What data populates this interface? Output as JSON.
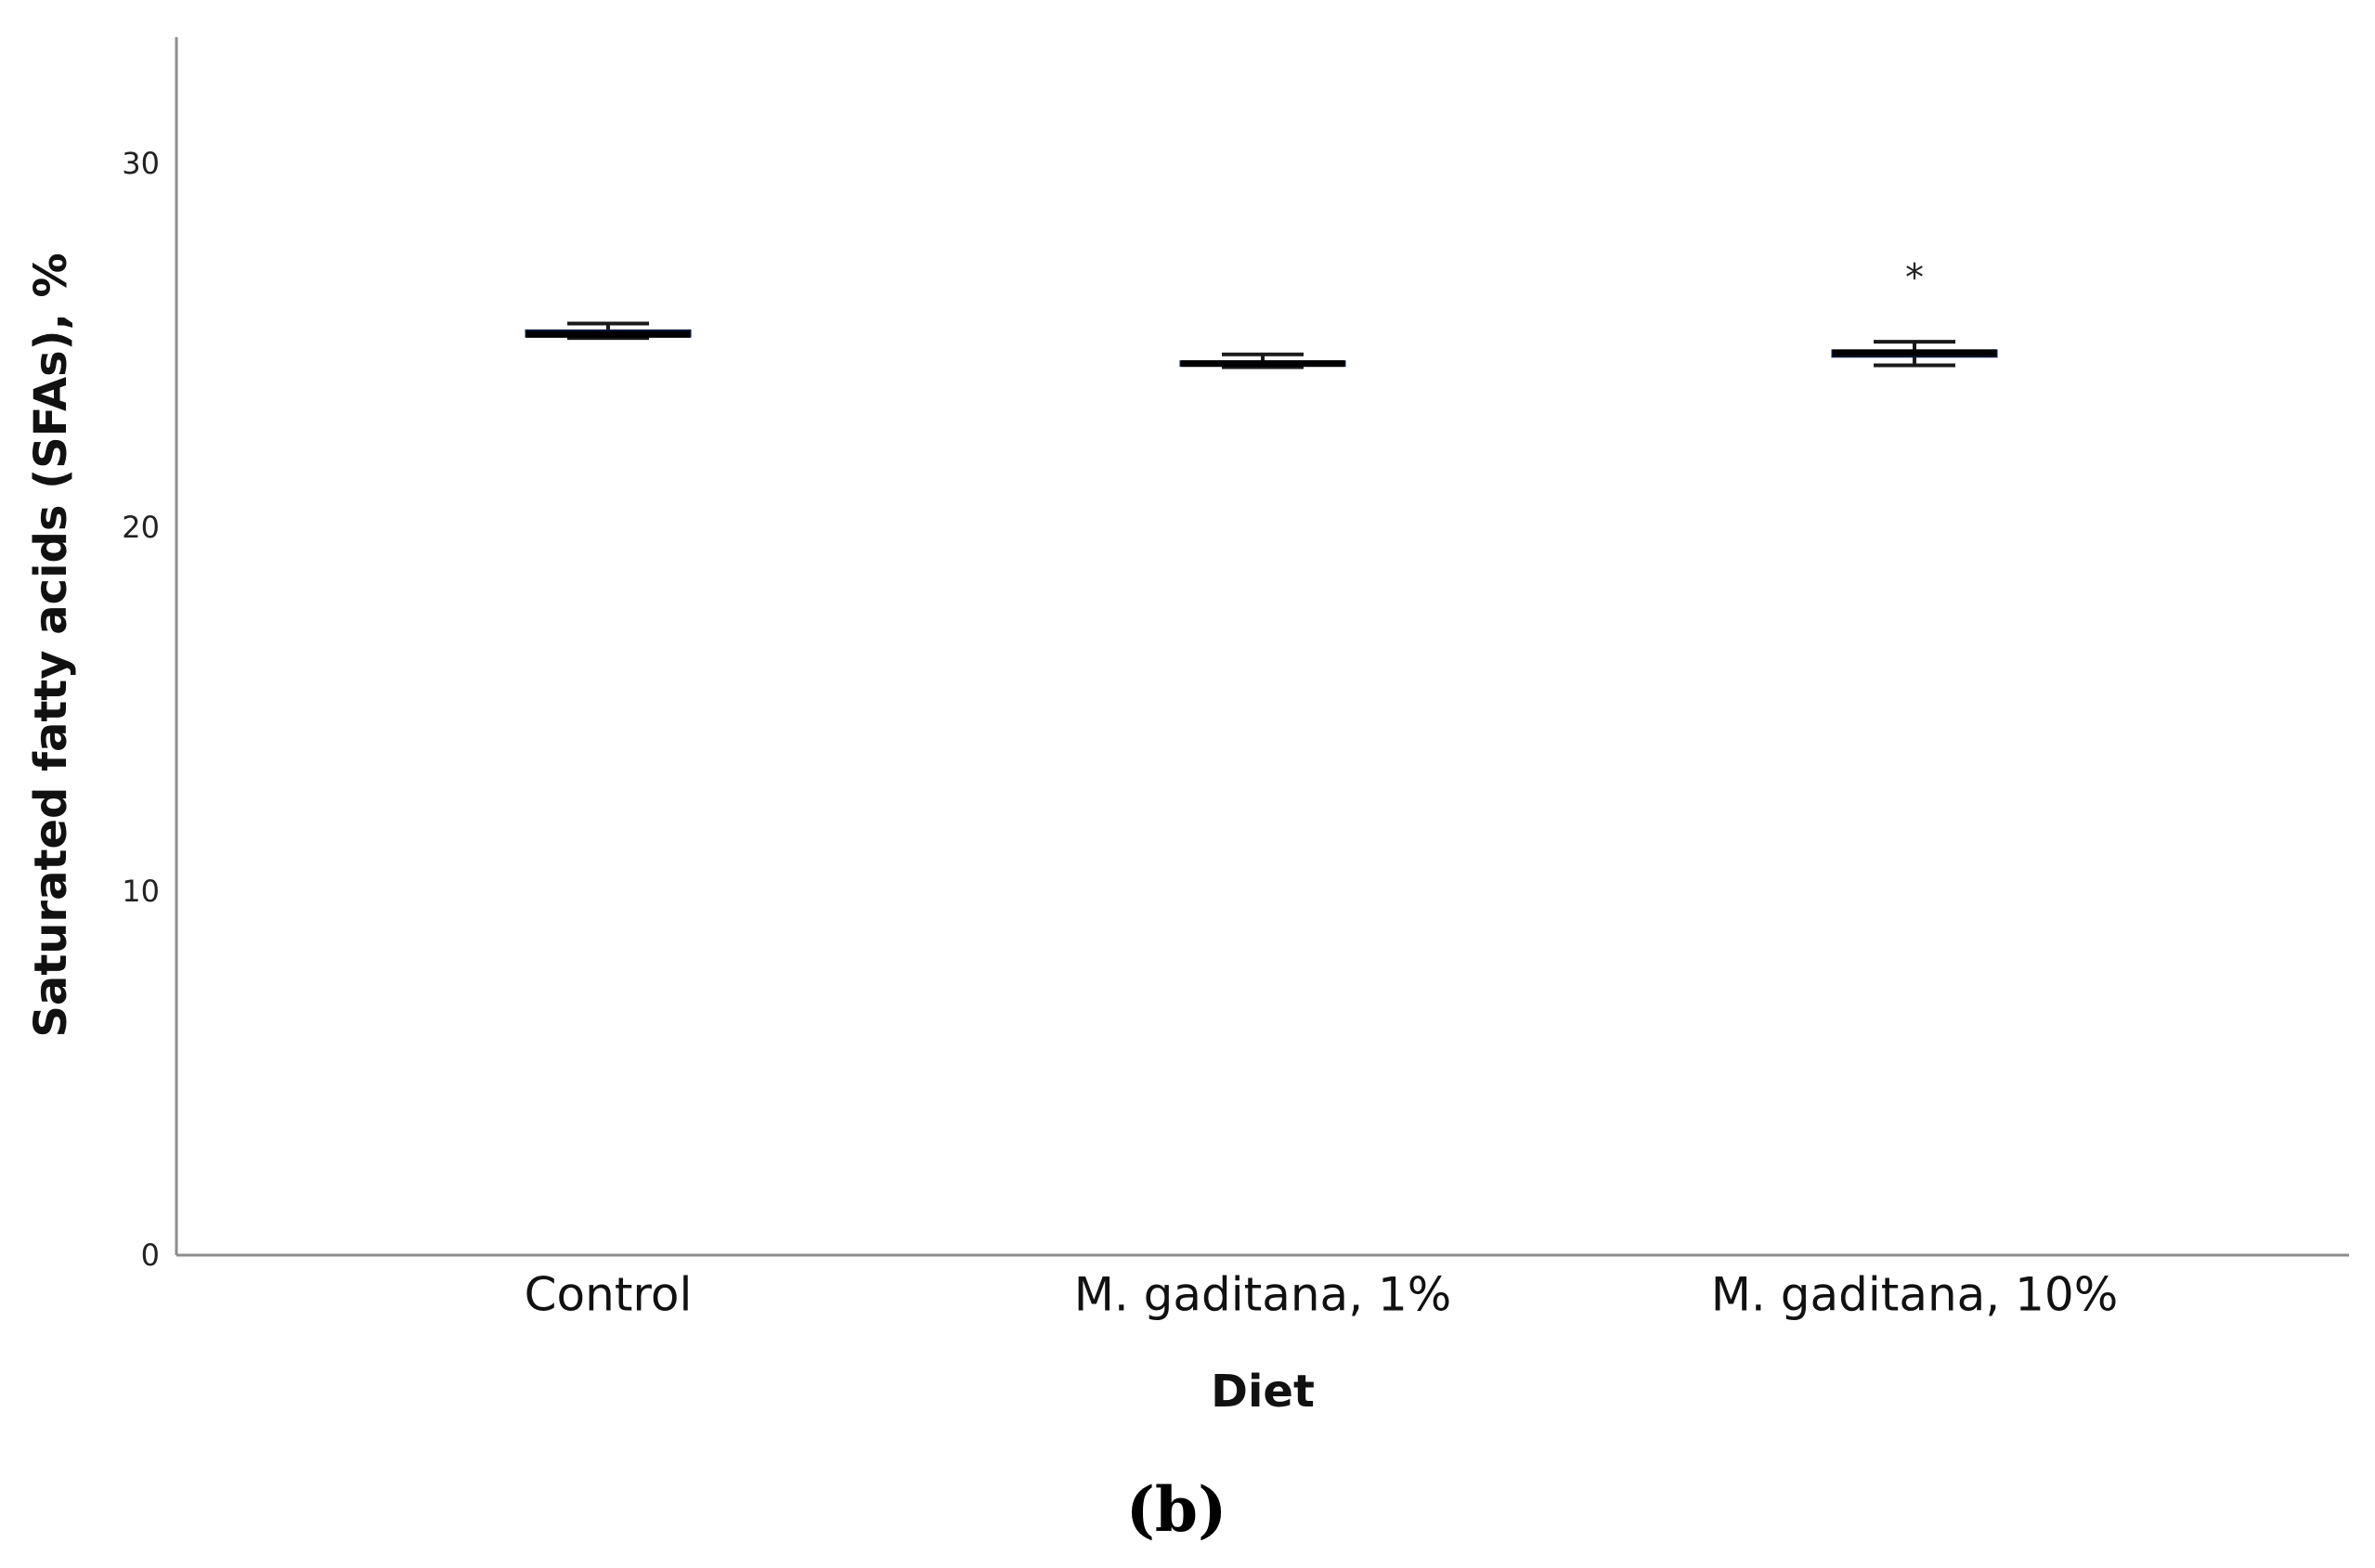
{
  "chart_data": {
    "type": "box",
    "title": "",
    "xlabel": "Diet",
    "ylabel": "Saturated fatty acids (SFAs), %",
    "categories": [
      "Control",
      "M. gaditana, 1%",
      "M. gaditana, 10%"
    ],
    "ylim": [
      0,
      33
    ],
    "yticks": [
      "0",
      "10",
      "20",
      "30"
    ],
    "grid": false,
    "boxes": [
      {
        "category": "Control",
        "min": 25.2,
        "q1": 25.25,
        "median": 25.3,
        "q3": 25.4,
        "max": 25.6,
        "outlier_marker": ""
      },
      {
        "category": "M. gaditana, 1%",
        "min": 24.4,
        "q1": 24.45,
        "median": 24.5,
        "q3": 24.55,
        "max": 24.75,
        "outlier_marker": ""
      },
      {
        "category": "M. gaditana, 10%",
        "min": 24.45,
        "q1": 24.7,
        "median": 24.8,
        "q3": 24.85,
        "max": 25.1,
        "outlier_marker": "*",
        "outlier_value": 26.8
      }
    ],
    "box_color": "#1f3b73"
  },
  "panel_label": "(b)"
}
